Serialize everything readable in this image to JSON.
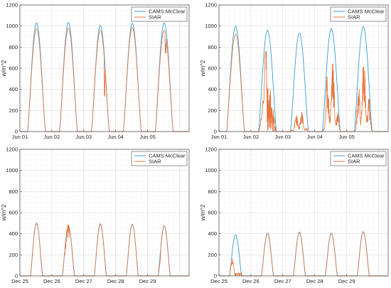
{
  "chart_data": [
    {
      "type": "line",
      "panel": "top-left",
      "ylabel": "w/m^2",
      "ylim": [
        0,
        1200
      ],
      "yticks": [
        0,
        200,
        400,
        600,
        800,
        1000,
        1200
      ],
      "xlim": [
        0,
        5.3
      ],
      "xticks": [
        0,
        1,
        2,
        3,
        4
      ],
      "xtick_labels": [
        "Jun 01",
        "Jun 02",
        "Jun 03",
        "Jun 04",
        "Jun 05"
      ],
      "grid": true,
      "legend": "top-right",
      "series": [
        {
          "name": "CAMS McClear",
          "color": "#3d9cd8",
          "peaks": [
            1030,
            1035,
            1005,
            1025,
            1030
          ]
        },
        {
          "name": "SIAR",
          "color": "#e8743b",
          "peaks": [
            975,
            980,
            960,
            985,
            960
          ]
        }
      ]
    },
    {
      "type": "line",
      "panel": "top-right",
      "ylabel": "w/m^2",
      "ylim": [
        0,
        1200
      ],
      "yticks": [
        0,
        200,
        400,
        600,
        800,
        1000,
        1200
      ],
      "xlim": [
        0,
        5.3
      ],
      "xticks": [
        0,
        1,
        2,
        3,
        4
      ],
      "xtick_labels": [
        "Jun 01",
        "Jun 02",
        "Jun 03",
        "Jun 04",
        "Jun 05"
      ],
      "grid": true,
      "legend": "top-right",
      "series": [
        {
          "name": "CAMS McClear",
          "color": "#3d9cd8",
          "peaks": [
            1000,
            960,
            935,
            975,
            995
          ]
        },
        {
          "name": "SIAR",
          "color": "#e8743b",
          "peaks": [
            925,
            800,
            180,
            640,
            660
          ]
        }
      ]
    },
    {
      "type": "line",
      "panel": "bottom-left",
      "ylabel": "w/m^2",
      "ylim": [
        0,
        1200
      ],
      "yticks": [
        0,
        200,
        400,
        600,
        800,
        1000,
        1200
      ],
      "xlim": [
        0,
        5.3
      ],
      "xticks": [
        0,
        1,
        2,
        3,
        4
      ],
      "xtick_labels": [
        "Dec 25",
        "Dec 26",
        "Dec 27",
        "Dec 28",
        "Dec 29"
      ],
      "grid": true,
      "legend": "top-right",
      "series": [
        {
          "name": "CAMS McClear",
          "color": "#3d9cd8",
          "peaks": [
            500,
            470,
            495,
            490,
            475
          ]
        },
        {
          "name": "SIAR",
          "color": "#e8743b",
          "peaks": [
            495,
            480,
            490,
            485,
            475
          ]
        }
      ]
    },
    {
      "type": "line",
      "panel": "bottom-right",
      "ylabel": "w/m^2",
      "ylim": [
        0,
        1200
      ],
      "yticks": [
        0,
        200,
        400,
        600,
        800,
        1000,
        1200
      ],
      "xlim": [
        0,
        5.3
      ],
      "xticks": [
        0,
        1,
        2,
        3,
        4
      ],
      "xtick_labels": [
        "Dec 25",
        "Dec 26",
        "Dec 27",
        "Dec 28",
        "Dec 29"
      ],
      "grid": true,
      "legend": "top-right",
      "series": [
        {
          "name": "CAMS McClear",
          "color": "#3d9cd8",
          "peaks": [
            390,
            405,
            415,
            405,
            420
          ]
        },
        {
          "name": "SIAR",
          "color": "#e8743b",
          "peaks": [
            170,
            400,
            410,
            400,
            415
          ]
        }
      ]
    }
  ]
}
